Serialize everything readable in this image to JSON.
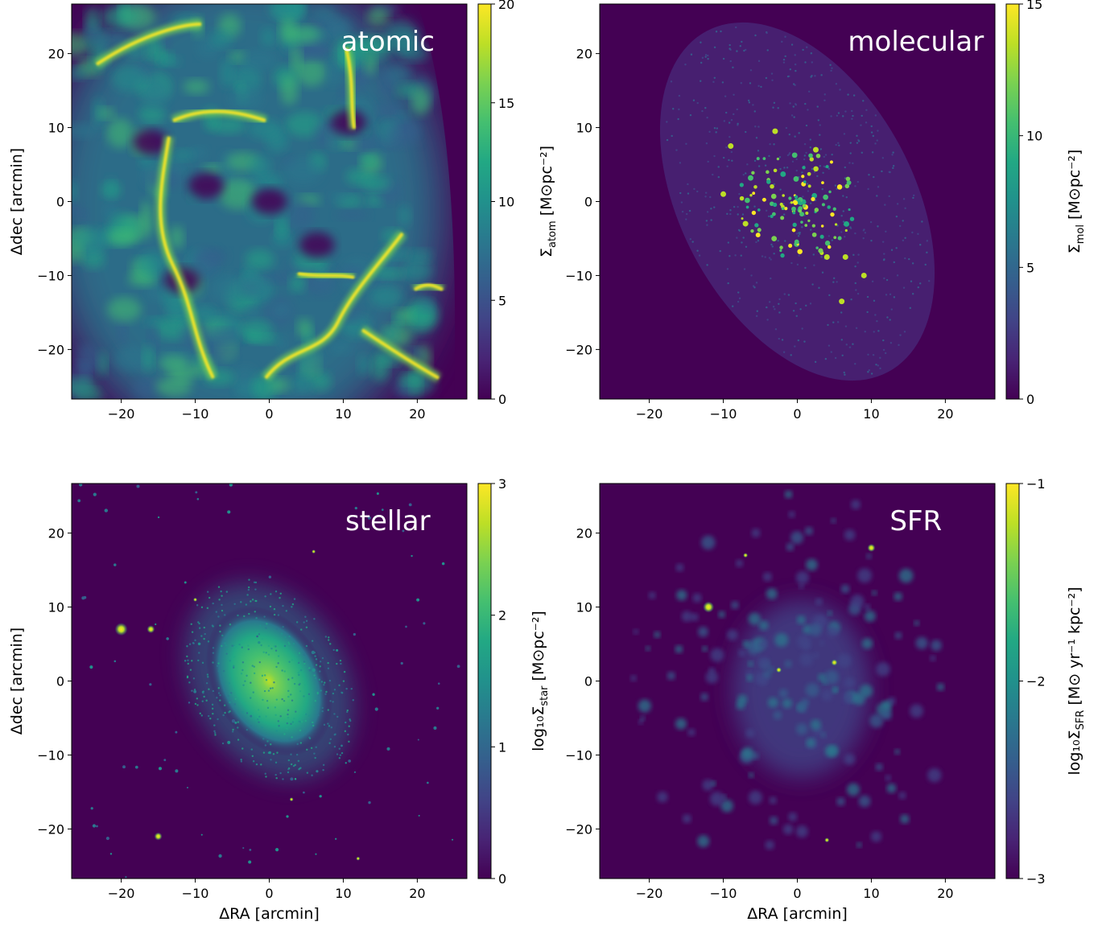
{
  "chart_data": [
    {
      "type": "heatmap",
      "panel_label": "atomic",
      "xlabel": "",
      "ylabel": "Δdec [arcmin]",
      "xlim": [
        -26.7,
        26.7
      ],
      "ylim": [
        -26.7,
        26.7
      ],
      "x_ticks": [
        "−20",
        "−10",
        "0",
        "10",
        "20"
      ],
      "y_ticks": [
        "20",
        "10",
        "0",
        "−10",
        "−20"
      ],
      "colorbar": {
        "label_prefix": "Σ",
        "label_sub": "atom",
        "label_unit": " [M⊙pc⁻²]",
        "min": 0,
        "max": 20,
        "ticks": [
          "0",
          "5",
          "10",
          "15",
          "20"
        ]
      },
      "colormap": "viridis",
      "morphology": "filamentary"
    },
    {
      "type": "heatmap",
      "panel_label": "molecular",
      "xlabel": "",
      "ylabel": "",
      "xlim": [
        -26.7,
        26.7
      ],
      "ylim": [
        -26.7,
        26.7
      ],
      "x_ticks": [
        "−20",
        "−10",
        "0",
        "10",
        "20"
      ],
      "y_ticks": [
        "20",
        "10",
        "0",
        "−10",
        "−20"
      ],
      "colorbar": {
        "label_prefix": "Σ",
        "label_sub": "mol",
        "label_unit": " [M⊙pc⁻²]",
        "min": 0,
        "max": 15,
        "ticks": [
          "0",
          "5",
          "10",
          "15"
        ]
      },
      "colormap": "viridis",
      "morphology": "elliptical-footprint-clumps"
    },
    {
      "type": "heatmap",
      "panel_label": "stellar",
      "xlabel": "ΔRA [arcmin]",
      "ylabel": "Δdec [arcmin]",
      "xlim": [
        -26.7,
        26.7
      ],
      "ylim": [
        -26.7,
        26.7
      ],
      "x_ticks": [
        "−20",
        "−10",
        "0",
        "10",
        "20"
      ],
      "y_ticks": [
        "20",
        "10",
        "0",
        "−10",
        "−20"
      ],
      "colorbar": {
        "label_prefix": "log₁₀Σ",
        "label_sub": "star",
        "label_unit": " [M⊙pc⁻²]",
        "min": 0,
        "max": 3,
        "ticks": [
          "0",
          "1",
          "2",
          "3"
        ]
      },
      "colormap": "viridis",
      "morphology": "central-bulge-with-stars"
    },
    {
      "type": "heatmap",
      "panel_label": "SFR",
      "xlabel": "ΔRA [arcmin]",
      "ylabel": "",
      "xlim": [
        -26.7,
        26.7
      ],
      "ylim": [
        -26.7,
        26.7
      ],
      "x_ticks": [
        "−20",
        "−10",
        "0",
        "10",
        "20"
      ],
      "y_ticks": [
        "20",
        "10",
        "0",
        "−10",
        "−20"
      ],
      "colorbar": {
        "label_prefix": "log₁₀Σ",
        "label_sub": "SFR",
        "label_unit": " [M⊙ yr⁻¹ kpc⁻²]",
        "min": -3,
        "max": -1,
        "ticks": [
          "−3",
          "−2",
          "−1"
        ]
      },
      "colormap": "viridis",
      "morphology": "spiral-clumps"
    }
  ]
}
